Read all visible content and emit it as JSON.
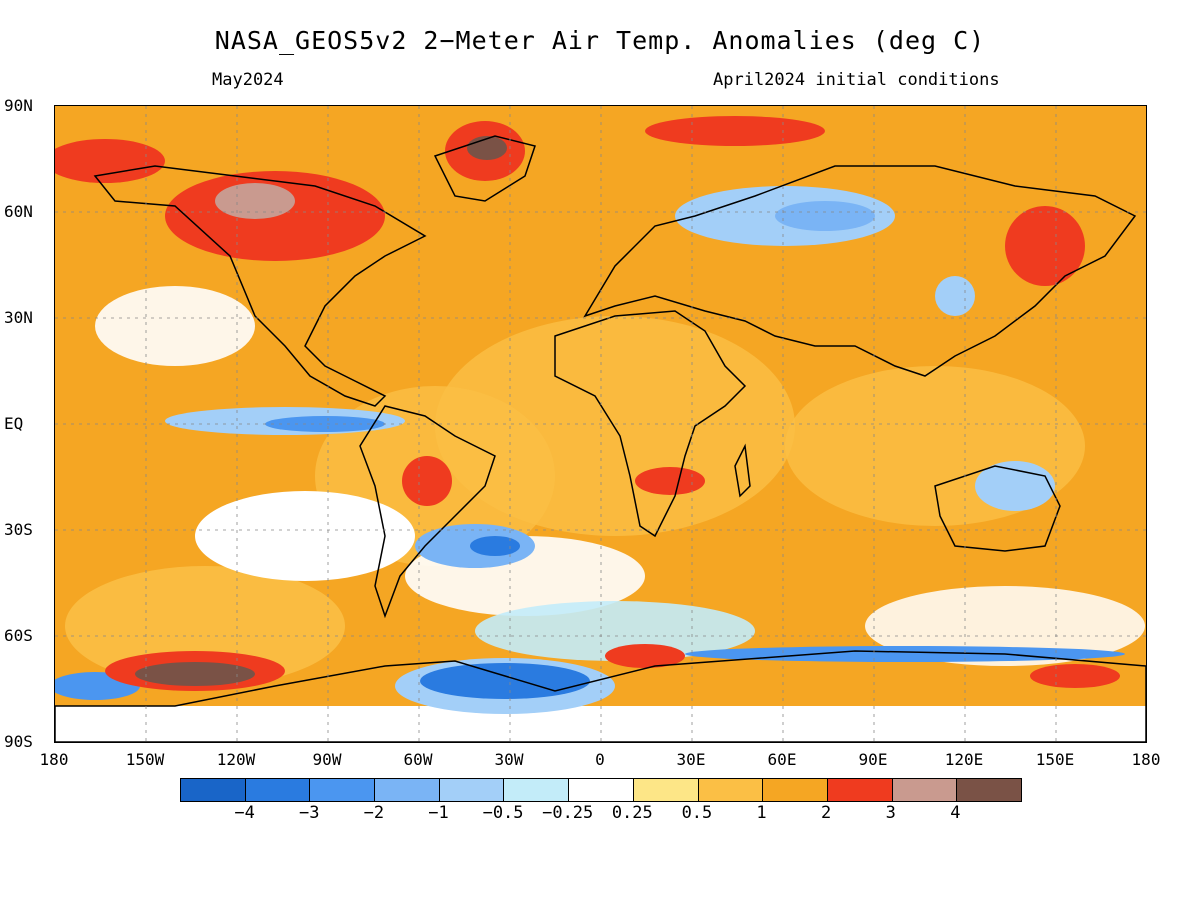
{
  "title": "NASA_GEOS5v2 2−Meter Air Temp. Anomalies (deg C)",
  "valid_month": "May2024",
  "init_conditions": "April2024 initial conditions",
  "lat_labels": [
    "90N",
    "60N",
    "30N",
    "EQ",
    "30S",
    "60S",
    "90S"
  ],
  "lon_labels": [
    "180",
    "150W",
    "120W",
    "90W",
    "60W",
    "30W",
    "0",
    "30E",
    "60E",
    "90E",
    "120E",
    "150E",
    "180"
  ],
  "colorbar": {
    "colors": [
      "#1965c8",
      "#2a7be0",
      "#4b96f0",
      "#7ab4f5",
      "#a3cff8",
      "#c3ecf9",
      "#ffffff",
      "#fde687",
      "#fbbf45",
      "#f5a623",
      "#ef3b1f",
      "#c99a8f",
      "#7a5246"
    ],
    "labels": [
      "−4",
      "−3",
      "−2",
      "−1",
      "−0.5",
      "−0.25",
      "0.25",
      "0.5",
      "1",
      "2",
      "3",
      "4"
    ]
  },
  "icons": {
    "map": "temperature-anomaly-map",
    "coastlines": "coastline-outline"
  }
}
